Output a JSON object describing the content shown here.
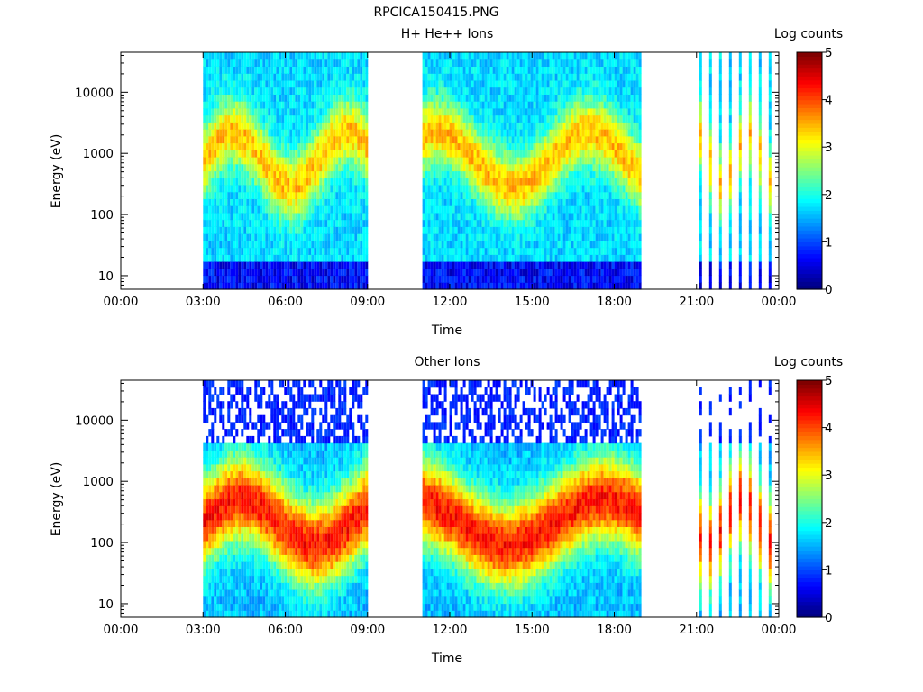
{
  "file_title": "RPCICA150415.PNG",
  "chart_data": [
    {
      "type": "heatmap",
      "title": "H+ He++ Ions",
      "xlabel": "Time",
      "ylabel": "Energy (eV)",
      "x_ticks": [
        "00:00",
        "03:00",
        "06:00",
        "09:00",
        "12:00",
        "15:00",
        "18:00",
        "21:00",
        "00:00"
      ],
      "x_range_hours": [
        0,
        24
      ],
      "y_scale": "log",
      "y_range": [
        6,
        45000
      ],
      "y_ticks": [
        10,
        100,
        1000,
        10000
      ],
      "colorbar": {
        "label": "Log counts",
        "range": [
          0,
          5
        ],
        "ticks": [
          0,
          1,
          2,
          3,
          4,
          5
        ]
      },
      "data_intervals_hours": [
        [
          3.0,
          9.0
        ],
        [
          11.0,
          18.9
        ],
        [
          21.1,
          23.8
        ]
      ],
      "grid": false
    },
    {
      "type": "heatmap",
      "title": "Other Ions",
      "xlabel": "Time",
      "ylabel": "Energy (eV)",
      "x_ticks": [
        "00:00",
        "03:00",
        "06:00",
        "09:00",
        "12:00",
        "15:00",
        "18:00",
        "21:00",
        "00:00"
      ],
      "x_range_hours": [
        0,
        24
      ],
      "y_scale": "log",
      "y_range": [
        6,
        45000
      ],
      "y_ticks": [
        10,
        100,
        1000,
        10000
      ],
      "colorbar": {
        "label": "Log counts",
        "range": [
          0,
          5
        ],
        "ticks": [
          0,
          1,
          2,
          3,
          4,
          5
        ]
      },
      "data_intervals_hours": [
        [
          3.0,
          9.0
        ],
        [
          11.0,
          18.9
        ],
        [
          21.1,
          23.8
        ]
      ],
      "grid": false
    }
  ]
}
